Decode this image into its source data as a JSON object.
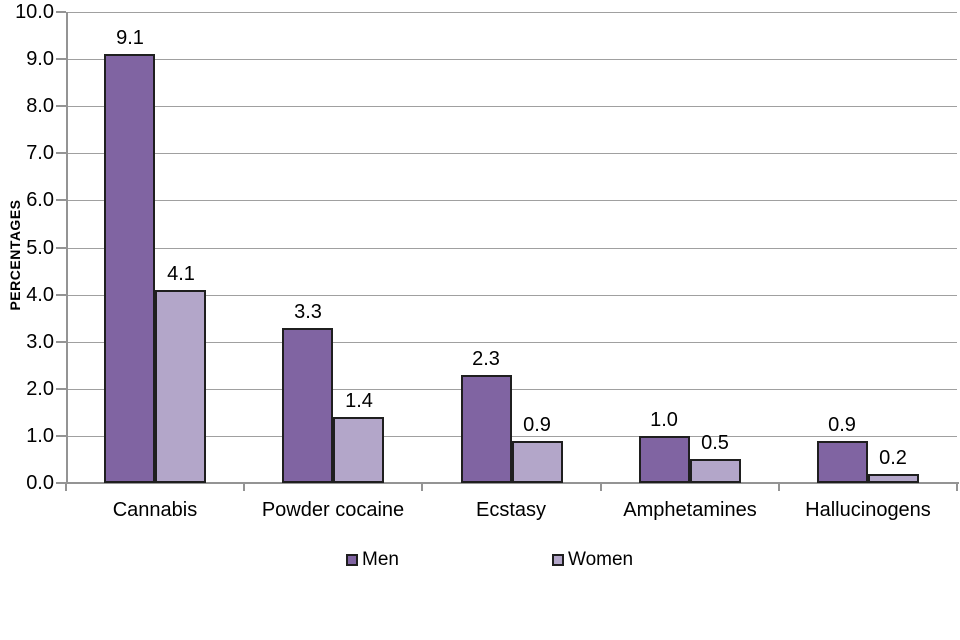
{
  "chart_data": {
    "type": "bar",
    "categories": [
      "Cannabis",
      "Powder cocaine",
      "Ecstasy",
      "Amphetamines",
      "Hallucinogens"
    ],
    "series": [
      {
        "name": "Men",
        "values": [
          9.1,
          3.3,
          2.3,
          1.0,
          0.9
        ],
        "color": "#8064A2"
      },
      {
        "name": "Women",
        "values": [
          4.1,
          1.4,
          0.9,
          0.5,
          0.2
        ],
        "color": "#B3A6C9"
      }
    ],
    "title": "",
    "xlabel": "",
    "ylabel": "PERCENTAGES",
    "ylim": [
      0,
      10
    ],
    "ytick_step": 1,
    "ytick_decimals": 1,
    "data_label_decimals": 1,
    "grid": "horizontal",
    "legend_position": "bottom",
    "data_labels": true
  },
  "colors": {
    "men_fill": "#8064A2",
    "women_fill": "#B3A6C9",
    "bar_border": "#1f1f1f",
    "gridline": "#a0a0a0",
    "axis": "#949494",
    "text": "#000000",
    "background": "#ffffff"
  }
}
